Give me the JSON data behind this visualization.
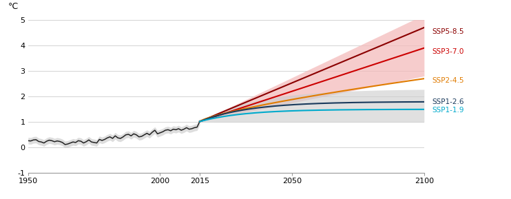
{
  "title": "",
  "ylabel": "°C",
  "xlim": [
    1950,
    2100
  ],
  "ylim": [
    -1,
    5
  ],
  "yticks": [
    -1,
    0,
    1,
    2,
    3,
    4,
    5
  ],
  "xticks": [
    1950,
    2000,
    2015,
    2050,
    2100
  ],
  "xticklabels": [
    "1950",
    "2000",
    "2015",
    "2050",
    "2100"
  ],
  "scenarios": {
    "SSP5-8.5": {
      "color": "#8B0000"
    },
    "SSP3-7.0": {
      "color": "#CC0000"
    },
    "SSP2-4.5": {
      "color": "#E07B00"
    },
    "SSP1-2.6": {
      "color": "#1a3a5c"
    },
    "SSP1-1.9": {
      "color": "#00AACC"
    }
  },
  "hist_color": "#222222",
  "hist_band_color": "#CCCCCC",
  "red_band_color": "#F4BBBB",
  "gray_band_color": "#CCCCCC",
  "background_color": "#FFFFFF",
  "gridline_color": "#CCCCCC",
  "label_settings": [
    [
      "SSP5-8.5",
      4.55
    ],
    [
      "SSP3-7.0",
      3.75
    ],
    [
      "SSP2-4.5",
      2.62
    ],
    [
      "SSP1-2.6",
      1.78
    ],
    [
      "SSP1-1.9",
      1.47
    ]
  ]
}
